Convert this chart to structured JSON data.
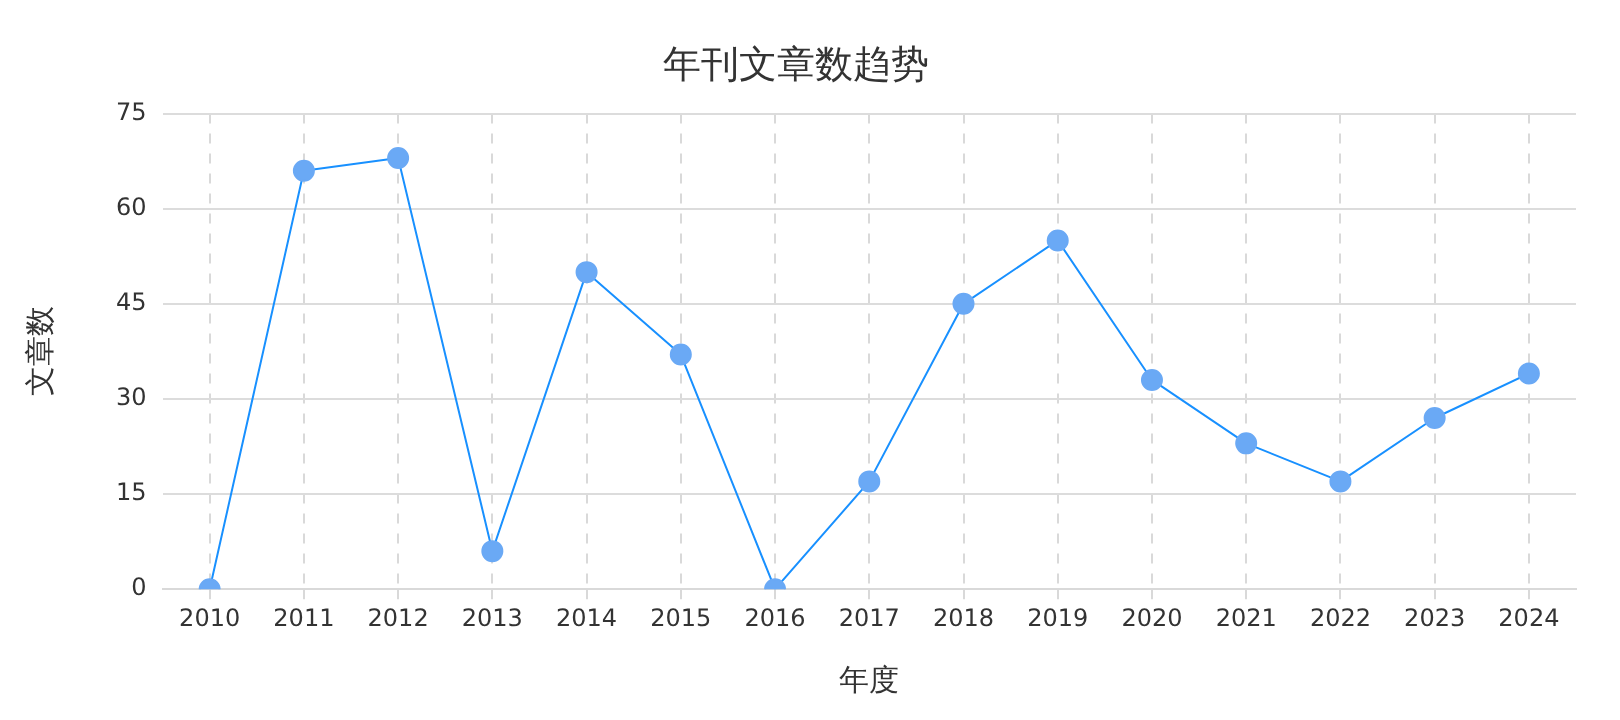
{
  "chart_data": {
    "type": "line",
    "title": "年刊文章数趋势",
    "xlabel": "年度",
    "ylabel": "文章数",
    "categories": [
      "2010",
      "2011",
      "2012",
      "2013",
      "2014",
      "2015",
      "2016",
      "2017",
      "2018",
      "2019",
      "2020",
      "2021",
      "2022",
      "2023",
      "2024"
    ],
    "series": [
      {
        "color": "#1890ff",
        "values": [
          0,
          66,
          68,
          6,
          50,
          37,
          0,
          17,
          45,
          55,
          33,
          23,
          17,
          27,
          34
        ]
      }
    ],
    "ylim": [
      0,
      75
    ],
    "yticks": [
      0,
      15,
      30,
      45,
      60,
      75
    ],
    "grid": true,
    "legend": false,
    "marker": "circle",
    "line_style": "solid"
  }
}
